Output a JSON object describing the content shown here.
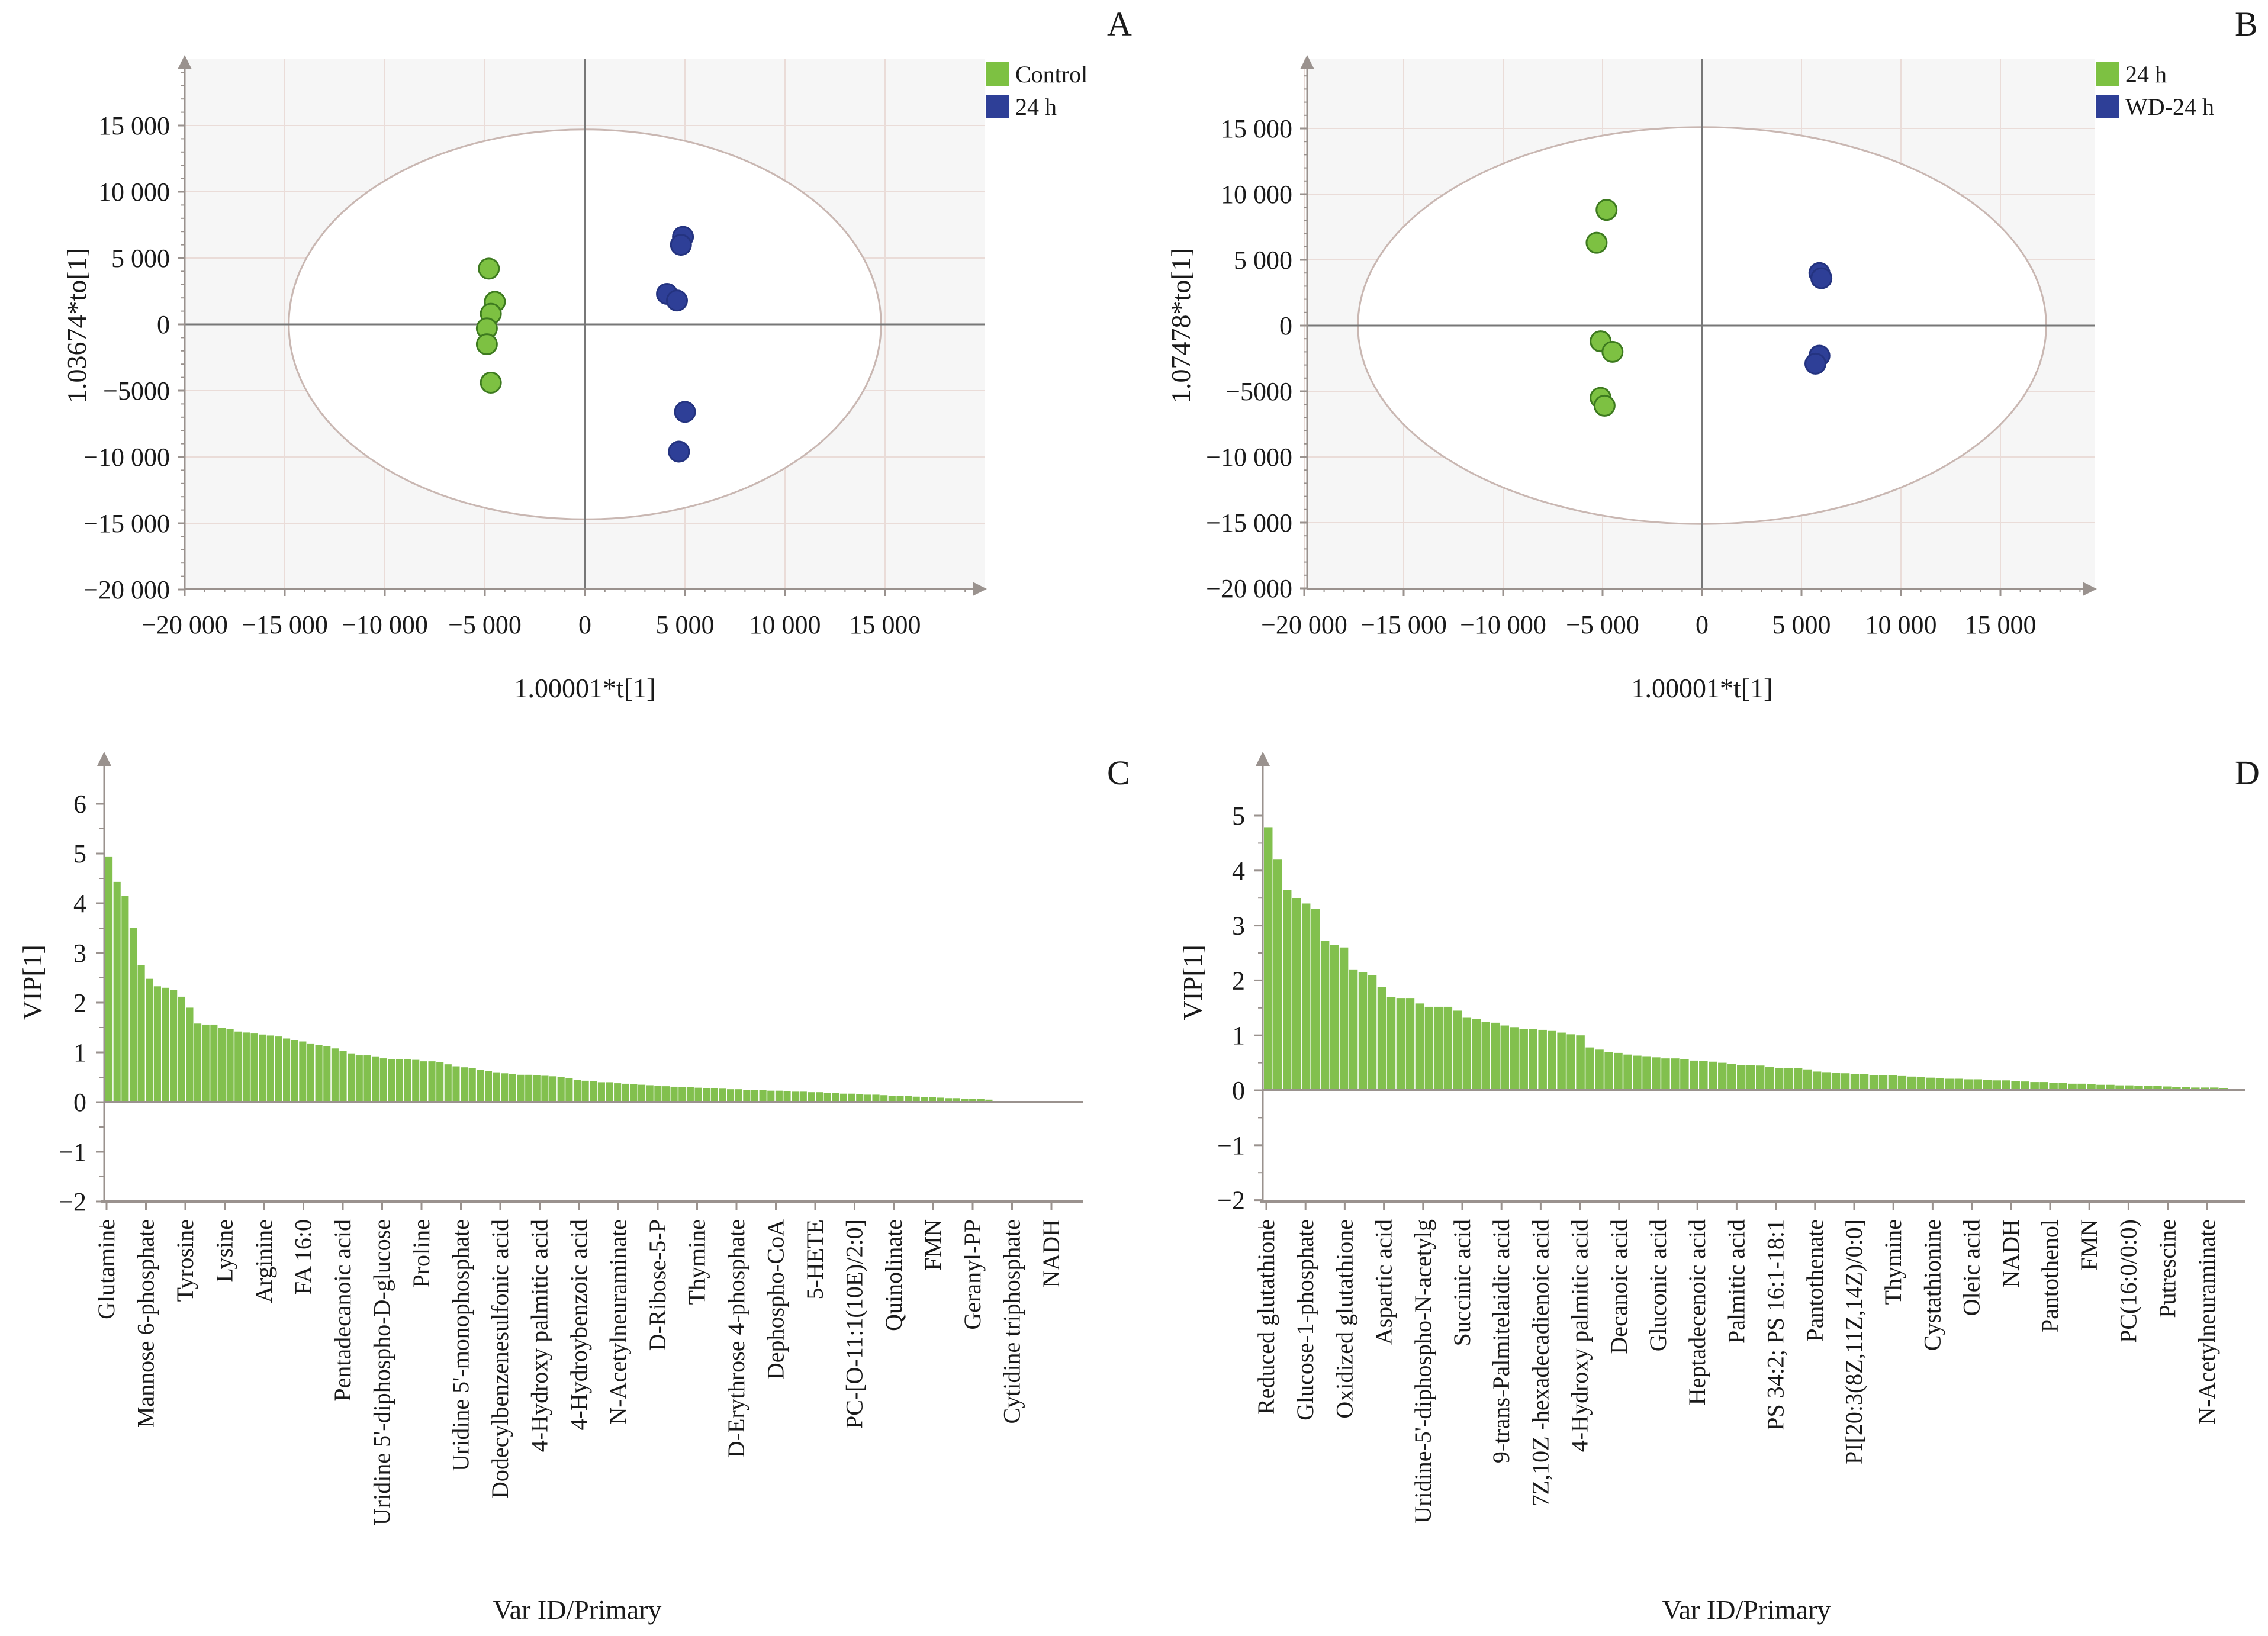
{
  "figure": {
    "panels": [
      "A",
      "B",
      "C",
      "D"
    ]
  },
  "chart_data": [
    {
      "id": "A",
      "type": "scatter",
      "panel_label": "A",
      "title": "",
      "xlabel": "1.00001*t[1]",
      "ylabel": "1.03674*to[1]",
      "xlim": [
        -20000,
        19000
      ],
      "ylim": [
        -20000,
        19000
      ],
      "xticks": [
        -20000,
        -15000,
        -10000,
        -5000,
        0,
        5000,
        10000,
        15000
      ],
      "xtick_labels": [
        "−20 000",
        "−15 000",
        "−10 000",
        "−5 000",
        "0",
        "5 000",
        "10 000",
        "15 000"
      ],
      "yticks": [
        15000,
        10000,
        5000,
        0,
        -5000,
        -10000,
        -15000,
        -20000
      ],
      "ytick_labels": [
        "15 000",
        "10 000",
        "5 000",
        "0",
        "−5000",
        "−10 000",
        "−15 000",
        "−20 000"
      ],
      "grid": true,
      "ellipse": {
        "rx": 14800,
        "ry": 14700
      },
      "legend_position": "top-right",
      "series": [
        {
          "name": "Control",
          "color": "#7dc142",
          "points": [
            [
              -4800,
              4200
            ],
            [
              -4500,
              1700
            ],
            [
              -4700,
              800
            ],
            [
              -4900,
              -300
            ],
            [
              -4900,
              -1500
            ],
            [
              -4700,
              -4400
            ]
          ]
        },
        {
          "name": "24 h",
          "color": "#2e3f97",
          "points": [
            [
              4900,
              6600
            ],
            [
              4800,
              6000
            ],
            [
              4100,
              2300
            ],
            [
              4600,
              1800
            ],
            [
              5000,
              -6600
            ],
            [
              4700,
              -9600
            ]
          ]
        }
      ]
    },
    {
      "id": "B",
      "type": "scatter",
      "panel_label": "B",
      "title": "",
      "xlabel": "1.00001*t[1]",
      "ylabel": "1.07478*to[1]",
      "xlim": [
        -20000,
        19500
      ],
      "ylim": [
        -20000,
        19000
      ],
      "xticks": [
        -20000,
        -15000,
        -10000,
        -5000,
        0,
        5000,
        10000,
        15000
      ],
      "xtick_labels": [
        "−20 000",
        "−15 000",
        "−10 000",
        "−5 000",
        "0",
        "5 000",
        "10 000",
        "15 000"
      ],
      "yticks": [
        15000,
        10000,
        5000,
        0,
        -5000,
        -10000,
        -15000,
        -20000
      ],
      "ytick_labels": [
        "15 000",
        "10 000",
        "5 000",
        "0",
        "−5000",
        "−10 000",
        "−15 000",
        "−20 000"
      ],
      "grid": true,
      "ellipse": {
        "rx": 17300,
        "ry": 15100
      },
      "legend_position": "top-right",
      "series": [
        {
          "name": "24 h",
          "color": "#7dc142",
          "points": [
            [
              -4800,
              8800
            ],
            [
              -5300,
              6300
            ],
            [
              -5100,
              -1200
            ],
            [
              -4500,
              -2000
            ],
            [
              -5100,
              -5500
            ],
            [
              -4900,
              -6100
            ]
          ]
        },
        {
          "name": "WD-24 h",
          "color": "#2e3f97",
          "points": [
            [
              5900,
              4000
            ],
            [
              6000,
              3600
            ],
            [
              5900,
              -2300
            ],
            [
              5700,
              -2900
            ]
          ]
        }
      ]
    },
    {
      "id": "C",
      "type": "bar",
      "panel_label": "C",
      "title": "",
      "xlabel": "Var ID/Primary",
      "ylabel": "VIP[1]",
      "ylim": [
        -2,
        6.5
      ],
      "yticks": [
        6,
        5,
        4,
        3,
        2,
        1,
        0,
        -1,
        -2
      ],
      "ytick_labels": [
        "6",
        "5",
        "4",
        "3",
        "2",
        "1",
        "0",
        "−1",
        "−2"
      ],
      "color": "#82c04e",
      "categories": [
        "Glutamine",
        "Mannose 6-phosphate",
        "Tyrosine",
        "Lysine",
        "Arginine",
        "FA 16:0",
        "Pentadecanoic acid",
        "Uridine 5'-diphospho-D-glucose",
        "Proline",
        "Uridine 5'-monophosphate",
        "Dodecylbenzenesulfonic acid",
        "4-Hydroxy palmitic acid",
        "4-Hydroybenzoic acid",
        "N-Acetylneuraminate",
        "D-Ribose-5-P",
        "Thymine",
        "D-Erythrose 4-phosphate",
        "Dephospho-CoA",
        "5-HETE",
        "PC-[O-11:1(10E)/2:0]",
        "Quinolinate",
        "FMN",
        "Geranyl-PP",
        "Cytidine triphosphate",
        "NADH"
      ],
      "values": [
        4.93,
        4.43,
        4.15,
        3.5,
        2.75,
        2.48,
        2.33,
        2.3,
        2.25,
        2.12,
        1.9,
        1.58,
        1.56,
        1.56,
        1.5,
        1.47,
        1.42,
        1.4,
        1.38,
        1.36,
        1.34,
        1.32,
        1.28,
        1.25,
        1.22,
        1.18,
        1.15,
        1.12,
        1.08,
        1.03,
        0.98,
        0.94,
        0.94,
        0.92,
        0.88,
        0.86,
        0.86,
        0.86,
        0.85,
        0.82,
        0.82,
        0.8,
        0.76,
        0.72,
        0.7,
        0.68,
        0.65,
        0.62,
        0.6,
        0.58,
        0.57,
        0.55,
        0.55,
        0.54,
        0.53,
        0.52,
        0.5,
        0.48,
        0.45,
        0.43,
        0.42,
        0.4,
        0.4,
        0.38,
        0.37,
        0.36,
        0.35,
        0.34,
        0.33,
        0.32,
        0.31,
        0.3,
        0.3,
        0.29,
        0.28,
        0.28,
        0.27,
        0.26,
        0.26,
        0.25,
        0.25,
        0.24,
        0.23,
        0.23,
        0.22,
        0.21,
        0.21,
        0.2,
        0.2,
        0.19,
        0.18,
        0.17,
        0.17,
        0.16,
        0.15,
        0.15,
        0.14,
        0.13,
        0.12,
        0.12,
        0.11,
        0.1,
        0.1,
        0.09,
        0.08,
        0.08,
        0.07,
        0.07,
        0.06,
        0.05
      ]
    },
    {
      "id": "D",
      "type": "bar",
      "panel_label": "D",
      "title": "",
      "xlabel": "Var ID/Primary",
      "ylabel": "VIP[1]",
      "ylim": [
        -2,
        5.6
      ],
      "yticks": [
        5,
        4,
        3,
        2,
        1,
        0,
        -1,
        -2
      ],
      "ytick_labels": [
        "5",
        "4",
        "3",
        "2",
        "1",
        "0",
        "−1",
        "−2"
      ],
      "color": "#82c04e",
      "categories": [
        "Reduced glutathione",
        "Glucose-1-phosphate",
        "Oxidized glutathione",
        "Aspartic acid",
        "Uridine-5'-diphospho-N-acetylg",
        "Succinic acid",
        "9-trans-Palmitelaidic acid",
        "7Z,10Z -hexadecadienoic acid",
        "4-Hydroxy palmitic acid",
        "Decanoic acid",
        "Gluconic acid",
        "Heptadecenoic acid",
        "Palmitic acid",
        "PS 34:2; PS 16:1-18:1",
        "Pantothenate",
        "PI[20:3(8Z,11Z,14Z)/0:0]",
        "Thymine",
        "Cystathionine",
        "Oleic acid",
        "NADH",
        "Pantothenol",
        "FMN",
        "PC(16:0/0:0)",
        "Putrescine",
        "N-Acetylneuraminate"
      ],
      "values": [
        4.78,
        4.2,
        3.65,
        3.5,
        3.4,
        3.3,
        2.72,
        2.65,
        2.6,
        2.2,
        2.15,
        2.1,
        1.88,
        1.7,
        1.68,
        1.68,
        1.58,
        1.52,
        1.52,
        1.52,
        1.45,
        1.32,
        1.3,
        1.25,
        1.23,
        1.18,
        1.15,
        1.12,
        1.12,
        1.1,
        1.08,
        1.05,
        1.02,
        1.0,
        0.78,
        0.74,
        0.7,
        0.68,
        0.65,
        0.63,
        0.62,
        0.6,
        0.58,
        0.58,
        0.57,
        0.54,
        0.53,
        0.52,
        0.5,
        0.48,
        0.46,
        0.46,
        0.45,
        0.42,
        0.4,
        0.4,
        0.4,
        0.38,
        0.34,
        0.33,
        0.32,
        0.31,
        0.3,
        0.3,
        0.28,
        0.27,
        0.27,
        0.26,
        0.25,
        0.24,
        0.23,
        0.22,
        0.21,
        0.21,
        0.2,
        0.2,
        0.19,
        0.18,
        0.18,
        0.17,
        0.16,
        0.15,
        0.15,
        0.14,
        0.13,
        0.12,
        0.12,
        0.11,
        0.1,
        0.1,
        0.09,
        0.09,
        0.08,
        0.08,
        0.08,
        0.07,
        0.06,
        0.06,
        0.05,
        0.05,
        0.05,
        0.04
      ]
    }
  ]
}
